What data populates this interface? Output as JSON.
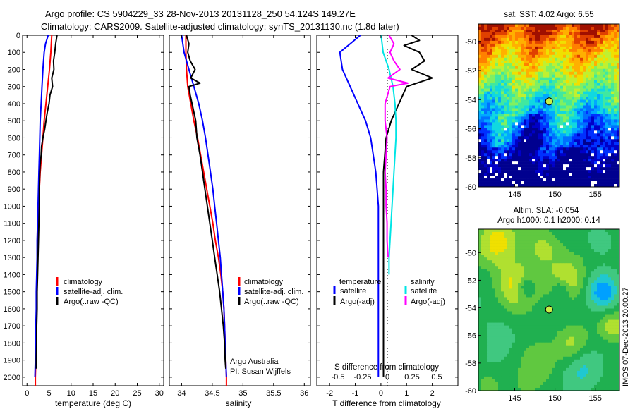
{
  "header": {
    "line1": "Argo profile: CS 5904229_33 28-Nov-2013 20131128_250 54.124S 149.27E",
    "line2": "Climatology: CARS2009. Satellite-adjusted climatology: synTS_20131130.nc (1.8d later)"
  },
  "colors": {
    "climatology": "#ff0000",
    "satellite": "#0000ff",
    "argo": "#000000",
    "sat_salinity": "#00e5e5",
    "argo_salinity": "#ff00ff"
  },
  "chart_data": [
    {
      "type": "line",
      "xlabel": "temperature (deg C)",
      "ylim": [
        2050,
        0
      ],
      "xlim": [
        -1,
        31
      ],
      "xticks": [
        0,
        5,
        10,
        15,
        20,
        25,
        30
      ],
      "yticks": [
        0,
        100,
        200,
        300,
        400,
        500,
        600,
        700,
        800,
        900,
        1000,
        1100,
        1200,
        1300,
        1400,
        1500,
        1600,
        1700,
        1800,
        1900,
        2000
      ],
      "legend": [
        "climatology",
        "satellite-adj. clim.",
        "Argo(..raw -QC)"
      ],
      "series": [
        {
          "name": "climatology",
          "color": "#ff0000",
          "points": [
            [
              5.6,
              0
            ],
            [
              5.4,
              100
            ],
            [
              5.1,
              200
            ],
            [
              4.7,
              300
            ],
            [
              4.3,
              400
            ],
            [
              3.9,
              500
            ],
            [
              3.6,
              600
            ],
            [
              3.3,
              700
            ],
            [
              3.0,
              800
            ],
            [
              2.8,
              900
            ],
            [
              2.7,
              1000
            ],
            [
              2.6,
              1100
            ],
            [
              2.5,
              1200
            ],
            [
              2.4,
              1300
            ],
            [
              2.3,
              1400
            ],
            [
              2.2,
              1500
            ],
            [
              2.2,
              1600
            ],
            [
              2.1,
              1700
            ],
            [
              2.0,
              1800
            ],
            [
              2.0,
              1900
            ],
            [
              1.9,
              2000
            ],
            [
              1.9,
              2050
            ]
          ]
        },
        {
          "name": "satellite-adj. clim.",
          "color": "#0000ff",
          "points": [
            [
              4.8,
              0
            ],
            [
              4.2,
              50
            ],
            [
              3.9,
              100
            ],
            [
              3.6,
              200
            ],
            [
              3.4,
              300
            ],
            [
              3.2,
              400
            ],
            [
              3.0,
              500
            ],
            [
              2.9,
              600
            ],
            [
              2.8,
              700
            ],
            [
              2.7,
              800
            ],
            [
              2.6,
              900
            ],
            [
              2.5,
              1000
            ],
            [
              2.4,
              1100
            ],
            [
              2.3,
              1200
            ],
            [
              2.3,
              1300
            ],
            [
              2.2,
              1400
            ],
            [
              2.1,
              1500
            ],
            [
              2.1,
              1600
            ],
            [
              2.0,
              1700
            ],
            [
              2.0,
              1800
            ],
            [
              1.9,
              1900
            ],
            [
              1.8,
              2000
            ]
          ]
        },
        {
          "name": "Argo(..raw -QC)",
          "color": "#000000",
          "points": [
            [
              6.8,
              0
            ],
            [
              6.5,
              50
            ],
            [
              6.3,
              100
            ],
            [
              6.0,
              150
            ],
            [
              6.1,
              200
            ],
            [
              5.6,
              250
            ],
            [
              5.8,
              300
            ],
            [
              5.2,
              350
            ],
            [
              5.0,
              400
            ],
            [
              4.6,
              450
            ],
            [
              4.3,
              500
            ],
            [
              4.0,
              550
            ],
            [
              3.6,
              600
            ],
            [
              3.3,
              650
            ],
            [
              3.2,
              700
            ],
            [
              3.0,
              750
            ],
            [
              2.9,
              800
            ],
            [
              2.8,
              900
            ],
            [
              2.8,
              1000
            ],
            [
              2.7,
              1100
            ],
            [
              2.6,
              1200
            ],
            [
              2.5,
              1300
            ],
            [
              2.4,
              1400
            ],
            [
              2.3,
              1500
            ],
            [
              2.3,
              1600
            ],
            [
              2.2,
              1700
            ],
            [
              2.2,
              1800
            ],
            [
              2.1,
              1900
            ],
            [
              2.1,
              1950
            ]
          ]
        }
      ]
    },
    {
      "type": "line",
      "xlabel": "salinity",
      "ylim": [
        2050,
        0
      ],
      "xlim": [
        33.8,
        36.1
      ],
      "xticks": [
        34,
        34.5,
        35,
        35.5,
        36
      ],
      "xticklabels": [
        "34",
        "34.5",
        "35",
        "35.5",
        "36"
      ],
      "legend": [
        "climatology",
        "satellite-adj. clim.",
        "Argo(..raw -QC)"
      ],
      "annotations": [
        "Argo Australia",
        "PI: Susan Wijffels"
      ],
      "series": [
        {
          "name": "climatology",
          "color": "#ff0000",
          "points": [
            [
              34.07,
              0
            ],
            [
              34.07,
              100
            ],
            [
              34.08,
              200
            ],
            [
              34.1,
              300
            ],
            [
              34.15,
              400
            ],
            [
              34.2,
              500
            ],
            [
              34.26,
              600
            ],
            [
              34.31,
              700
            ],
            [
              34.36,
              800
            ],
            [
              34.41,
              900
            ],
            [
              34.46,
              1000
            ],
            [
              34.51,
              1100
            ],
            [
              34.55,
              1200
            ],
            [
              34.6,
              1300
            ],
            [
              34.64,
              1400
            ],
            [
              34.67,
              1500
            ],
            [
              34.69,
              1600
            ],
            [
              34.7,
              1700
            ],
            [
              34.71,
              1800
            ],
            [
              34.72,
              1900
            ],
            [
              34.73,
              2000
            ],
            [
              34.73,
              2050
            ]
          ]
        },
        {
          "name": "satellite-adj. clim.",
          "color": "#0000ff",
          "points": [
            [
              34.0,
              0
            ],
            [
              34.04,
              100
            ],
            [
              34.12,
              200
            ],
            [
              34.2,
              300
            ],
            [
              34.28,
              400
            ],
            [
              34.34,
              500
            ],
            [
              34.39,
              600
            ],
            [
              34.43,
              700
            ],
            [
              34.47,
              800
            ],
            [
              34.51,
              900
            ],
            [
              34.54,
              1000
            ],
            [
              34.57,
              1100
            ],
            [
              34.6,
              1200
            ],
            [
              34.63,
              1300
            ],
            [
              34.65,
              1400
            ],
            [
              34.67,
              1500
            ],
            [
              34.69,
              1600
            ],
            [
              34.7,
              1700
            ],
            [
              34.71,
              1800
            ],
            [
              34.72,
              1900
            ],
            [
              34.73,
              2000
            ]
          ]
        },
        {
          "name": "Argo(..raw -QC)",
          "color": "#000000",
          "points": [
            [
              34.08,
              0
            ],
            [
              34.12,
              50
            ],
            [
              34.1,
              100
            ],
            [
              34.14,
              150
            ],
            [
              34.22,
              200
            ],
            [
              34.15,
              250
            ],
            [
              34.3,
              280
            ],
            [
              34.12,
              300
            ],
            [
              34.14,
              350
            ],
            [
              34.17,
              400
            ],
            [
              34.2,
              450
            ],
            [
              34.23,
              500
            ],
            [
              34.25,
              600
            ],
            [
              34.3,
              700
            ],
            [
              34.34,
              800
            ],
            [
              34.38,
              900
            ],
            [
              34.42,
              1000
            ],
            [
              34.46,
              1100
            ],
            [
              34.5,
              1200
            ],
            [
              34.54,
              1300
            ],
            [
              34.58,
              1400
            ],
            [
              34.62,
              1500
            ],
            [
              34.65,
              1600
            ],
            [
              34.68,
              1700
            ],
            [
              34.7,
              1800
            ],
            [
              34.71,
              1900
            ],
            [
              34.72,
              1950
            ]
          ]
        }
      ]
    },
    {
      "type": "line",
      "xlabel": "T difference from climatology",
      "xlabel_top": "S difference from climatology",
      "ylim": [
        2050,
        0
      ],
      "xlim": [
        -2.5,
        3.0
      ],
      "xticks": [
        -2,
        -1,
        0,
        1,
        2
      ],
      "xticks_top": [
        -0.5,
        -0.25,
        0,
        0.25,
        0.5
      ],
      "legend_headers": [
        "temperature",
        "salinity"
      ],
      "legend": [
        "satellite",
        "Argo(-adj)",
        "satellite",
        "Argo(-adj)"
      ],
      "series": [
        {
          "name": "temperature satellite",
          "color": "#0000ff",
          "points": [
            [
              -0.8,
              0
            ],
            [
              -1.2,
              50
            ],
            [
              -1.6,
              100
            ],
            [
              -1.5,
              200
            ],
            [
              -1.2,
              300
            ],
            [
              -0.9,
              400
            ],
            [
              -0.6,
              500
            ],
            [
              -0.4,
              600
            ],
            [
              -0.3,
              700
            ],
            [
              -0.2,
              800
            ],
            [
              -0.15,
              900
            ],
            [
              -0.1,
              1000
            ],
            [
              -0.1,
              1100
            ],
            [
              -0.1,
              1200
            ],
            [
              -0.1,
              1300
            ],
            [
              -0.1,
              1500
            ],
            [
              -0.1,
              1700
            ],
            [
              -0.1,
              1900
            ],
            [
              -0.1,
              2000
            ]
          ]
        },
        {
          "name": "temperature Argo(-adj)",
          "color": "#000000",
          "points": [
            [
              1.2,
              0
            ],
            [
              1.5,
              30
            ],
            [
              0.9,
              60
            ],
            [
              1.5,
              100
            ],
            [
              1.7,
              150
            ],
            [
              1.2,
              200
            ],
            [
              2.0,
              250
            ],
            [
              1.0,
              300
            ],
            [
              0.7,
              400
            ],
            [
              0.4,
              500
            ],
            [
              0.2,
              600
            ],
            [
              0.15,
              700
            ],
            [
              0.1,
              800
            ],
            [
              0.1,
              900
            ],
            [
              0.1,
              1000
            ],
            [
              0.1,
              1100
            ],
            [
              0.1,
              1200
            ],
            [
              0.1,
              1300
            ],
            [
              0.1,
              1500
            ],
            [
              0.1,
              1700
            ],
            [
              0.1,
              1900
            ],
            [
              0.1,
              2000
            ]
          ]
        },
        {
          "name": "salinity satellite",
          "color": "#00e5e5",
          "points": [
            [
              -0.07,
              0
            ],
            [
              -0.05,
              100
            ],
            [
              0.01,
              200
            ],
            [
              0.05,
              300
            ],
            [
              0.07,
              400
            ],
            [
              0.08,
              500
            ],
            [
              0.08,
              600
            ],
            [
              0.07,
              700
            ],
            [
              0.06,
              800
            ],
            [
              0.05,
              900
            ],
            [
              0.04,
              1000
            ],
            [
              0.03,
              1100
            ],
            [
              0.02,
              1200
            ],
            [
              0.01,
              1300
            ],
            [
              0.01,
              1400
            ]
          ]
        },
        {
          "name": "salinity Argo(-adj)",
          "color": "#ff00ff",
          "points": [
            [
              0.01,
              0
            ],
            [
              0.06,
              50
            ],
            [
              0.02,
              100
            ],
            [
              0.06,
              150
            ],
            [
              0.12,
              200
            ],
            [
              0.0,
              250
            ],
            [
              0.2,
              280
            ],
            [
              0.02,
              300
            ],
            [
              -0.03,
              400
            ],
            [
              -0.03,
              500
            ],
            [
              -0.01,
              600
            ],
            [
              -0.02,
              700
            ],
            [
              -0.03,
              800
            ],
            [
              -0.02,
              900
            ],
            [
              -0.02,
              1000
            ],
            [
              -0.01,
              1100
            ],
            [
              -0.01,
              1200
            ],
            [
              0.0,
              1300
            ]
          ]
        }
      ]
    },
    {
      "type": "heatmap",
      "title": "sat. SST: 4.02 Argo: 6.55",
      "xticks": [
        145,
        150,
        155
      ],
      "yticks": [
        -50,
        -52,
        -54,
        -56,
        -58,
        -60
      ],
      "xlim": [
        140.5,
        158
      ],
      "ylim": [
        -60,
        -48.8
      ],
      "marker": {
        "lon": 149.27,
        "lat": -54.124
      }
    },
    {
      "type": "heatmap",
      "title_line1": "Altim. SLA: -0.054",
      "title_line2": "Argo h1000: 0.1 h2000: 0.14",
      "xticks": [
        145,
        150,
        155
      ],
      "yticks": [
        -50,
        -52,
        -54,
        -56,
        -58,
        -60
      ],
      "xlim": [
        140.5,
        158
      ],
      "ylim": [
        -60,
        -48.3
      ],
      "marker": {
        "lon": 149.27,
        "lat": -54.124
      },
      "side_label": "IMOS 07-Dec-2013 20:00:27"
    }
  ]
}
